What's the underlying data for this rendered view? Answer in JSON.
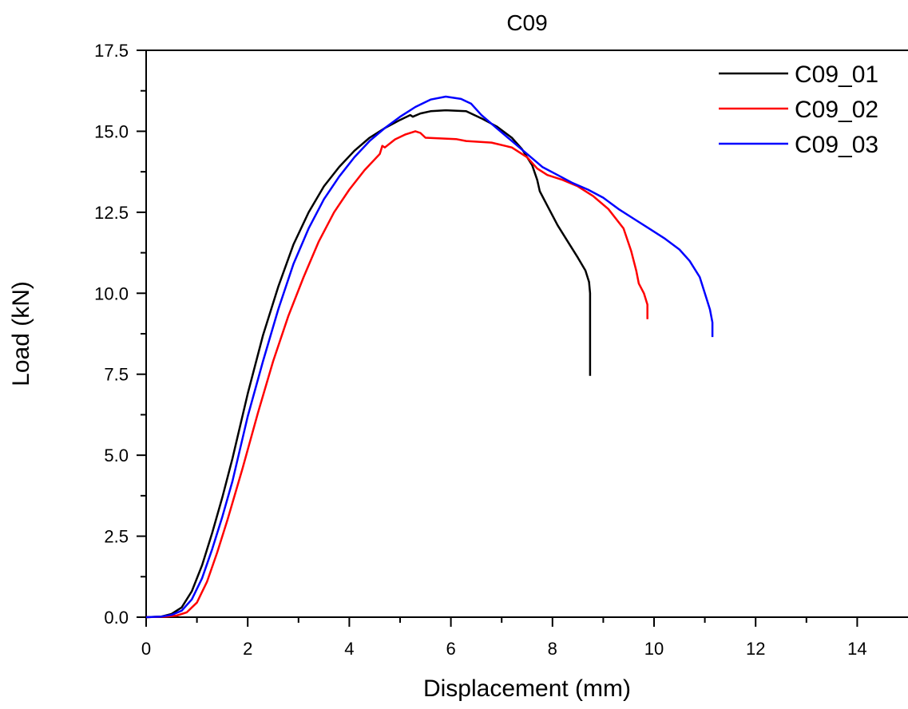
{
  "chart_data": {
    "type": "line",
    "title": "C09",
    "xlabel": "Displacement (mm)",
    "ylabel": "Load (kN)",
    "xlim": [
      0,
      15
    ],
    "ylim": [
      0,
      17.5
    ],
    "x_ticks": [
      "0",
      "2",
      "4",
      "6",
      "8",
      "10",
      "12",
      "14"
    ],
    "y_ticks": [
      "0.0",
      "2.5",
      "5.0",
      "7.5",
      "10.0",
      "12.5",
      "15.0",
      "17.5"
    ],
    "grid": false,
    "legend_position": "top-right",
    "series": [
      {
        "name": "C09_01",
        "color": "#000000",
        "points": [
          [
            0,
            0
          ],
          [
            0.3,
            0.02
          ],
          [
            0.5,
            0.1
          ],
          [
            0.7,
            0.3
          ],
          [
            0.9,
            0.8
          ],
          [
            1.1,
            1.6
          ],
          [
            1.3,
            2.6
          ],
          [
            1.5,
            3.7
          ],
          [
            1.7,
            4.9
          ],
          [
            2.0,
            6.9
          ],
          [
            2.3,
            8.7
          ],
          [
            2.6,
            10.2
          ],
          [
            2.9,
            11.5
          ],
          [
            3.2,
            12.5
          ],
          [
            3.5,
            13.3
          ],
          [
            3.8,
            13.9
          ],
          [
            4.1,
            14.4
          ],
          [
            4.4,
            14.8
          ],
          [
            4.7,
            15.1
          ],
          [
            5.0,
            15.35
          ],
          [
            5.2,
            15.5
          ],
          [
            5.25,
            15.45
          ],
          [
            5.4,
            15.55
          ],
          [
            5.6,
            15.62
          ],
          [
            5.9,
            15.65
          ],
          [
            6.3,
            15.62
          ],
          [
            6.6,
            15.4
          ],
          [
            6.9,
            15.15
          ],
          [
            7.2,
            14.8
          ],
          [
            7.4,
            14.45
          ],
          [
            7.6,
            13.95
          ],
          [
            7.7,
            13.5
          ],
          [
            7.75,
            13.15
          ],
          [
            7.9,
            12.7
          ],
          [
            8.1,
            12.1
          ],
          [
            8.3,
            11.6
          ],
          [
            8.5,
            11.1
          ],
          [
            8.65,
            10.7
          ],
          [
            8.72,
            10.35
          ],
          [
            8.74,
            10.0
          ],
          [
            8.74,
            7.45
          ]
        ]
      },
      {
        "name": "C09_02",
        "color": "#ff0000",
        "points": [
          [
            0,
            0
          ],
          [
            0.4,
            0.02
          ],
          [
            0.6,
            0.05
          ],
          [
            0.8,
            0.15
          ],
          [
            1.0,
            0.45
          ],
          [
            1.2,
            1.1
          ],
          [
            1.4,
            2.0
          ],
          [
            1.6,
            3.0
          ],
          [
            1.9,
            4.6
          ],
          [
            2.2,
            6.3
          ],
          [
            2.5,
            7.9
          ],
          [
            2.8,
            9.3
          ],
          [
            3.1,
            10.5
          ],
          [
            3.4,
            11.6
          ],
          [
            3.7,
            12.5
          ],
          [
            4.0,
            13.2
          ],
          [
            4.3,
            13.8
          ],
          [
            4.6,
            14.3
          ],
          [
            4.65,
            14.55
          ],
          [
            4.7,
            14.5
          ],
          [
            4.9,
            14.75
          ],
          [
            5.1,
            14.9
          ],
          [
            5.3,
            15.0
          ],
          [
            5.4,
            14.95
          ],
          [
            5.5,
            14.8
          ],
          [
            5.8,
            14.78
          ],
          [
            6.1,
            14.76
          ],
          [
            6.3,
            14.7
          ],
          [
            6.8,
            14.65
          ],
          [
            7.2,
            14.5
          ],
          [
            7.5,
            14.2
          ],
          [
            7.7,
            13.85
          ],
          [
            7.9,
            13.65
          ],
          [
            8.2,
            13.5
          ],
          [
            8.5,
            13.3
          ],
          [
            8.8,
            13.0
          ],
          [
            9.1,
            12.6
          ],
          [
            9.4,
            12.0
          ],
          [
            9.55,
            11.3
          ],
          [
            9.65,
            10.7
          ],
          [
            9.7,
            10.3
          ],
          [
            9.8,
            10.0
          ],
          [
            9.87,
            9.65
          ],
          [
            9.87,
            9.2
          ]
        ]
      },
      {
        "name": "C09_03",
        "color": "#0000ff",
        "points": [
          [
            0,
            0
          ],
          [
            0.3,
            0.02
          ],
          [
            0.5,
            0.07
          ],
          [
            0.7,
            0.2
          ],
          [
            0.9,
            0.55
          ],
          [
            1.1,
            1.2
          ],
          [
            1.3,
            2.1
          ],
          [
            1.5,
            3.1
          ],
          [
            1.7,
            4.2
          ],
          [
            2.0,
            6.2
          ],
          [
            2.3,
            7.9
          ],
          [
            2.6,
            9.5
          ],
          [
            2.9,
            10.9
          ],
          [
            3.2,
            12.0
          ],
          [
            3.5,
            12.9
          ],
          [
            3.8,
            13.6
          ],
          [
            4.1,
            14.2
          ],
          [
            4.4,
            14.7
          ],
          [
            4.7,
            15.1
          ],
          [
            5.0,
            15.45
          ],
          [
            5.3,
            15.75
          ],
          [
            5.6,
            15.98
          ],
          [
            5.9,
            16.07
          ],
          [
            6.2,
            16.0
          ],
          [
            6.4,
            15.85
          ],
          [
            6.6,
            15.5
          ],
          [
            6.9,
            15.1
          ],
          [
            7.2,
            14.7
          ],
          [
            7.5,
            14.3
          ],
          [
            7.8,
            13.9
          ],
          [
            8.1,
            13.65
          ],
          [
            8.4,
            13.4
          ],
          [
            8.7,
            13.2
          ],
          [
            9.0,
            12.95
          ],
          [
            9.3,
            12.6
          ],
          [
            9.6,
            12.3
          ],
          [
            9.9,
            12.0
          ],
          [
            10.2,
            11.7
          ],
          [
            10.5,
            11.35
          ],
          [
            10.7,
            11.0
          ],
          [
            10.9,
            10.5
          ],
          [
            11.0,
            10.0
          ],
          [
            11.1,
            9.5
          ],
          [
            11.15,
            9.1
          ],
          [
            11.15,
            8.65
          ]
        ]
      }
    ]
  }
}
